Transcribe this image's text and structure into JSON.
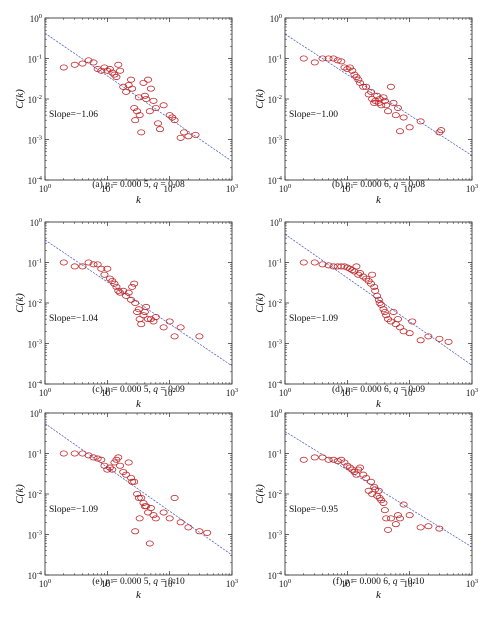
{
  "chart_data": [
    {
      "type": "scatter",
      "panel_id": "a",
      "caption": {
        "label": "(a) ",
        "p_var": "p",
        "p_val": " = 0.000 5, ",
        "q_var": "q",
        "q_val": " = 0.08"
      },
      "xlabel": "k",
      "ylabel": "C(k)",
      "x_scale": "log",
      "y_scale": "log",
      "xlim": [
        1,
        1000
      ],
      "ylim": [
        0.0001,
        1
      ],
      "x_ticks": [
        "10^0",
        "10^1",
        "10^2",
        "10^3"
      ],
      "y_ticks": [
        "10^0",
        "10^-1",
        "10^-2",
        "10^-3",
        "10^-4"
      ],
      "annotation": "Slope=−1.06",
      "fit_line": {
        "slope": -1.06,
        "points": [
          [
            1,
            0.42
          ],
          [
            1000,
            0.00029
          ]
        ]
      },
      "x": [
        2,
        3,
        4,
        5,
        6,
        7,
        8,
        9,
        10,
        11,
        12,
        13,
        14,
        15,
        16,
        18,
        20,
        22,
        24,
        25,
        27,
        28,
        30,
        32,
        33,
        35,
        38,
        40,
        42,
        45,
        48,
        50,
        55,
        60,
        65,
        70,
        80,
        100,
        110,
        120,
        150,
        170,
        200,
        260
      ],
      "y": [
        0.06,
        0.07,
        0.075,
        0.09,
        0.08,
        0.055,
        0.05,
        0.06,
        0.05,
        0.055,
        0.045,
        0.04,
        0.035,
        0.07,
        0.05,
        0.02,
        0.015,
        0.022,
        0.03,
        0.018,
        0.006,
        0.003,
        0.005,
        0.011,
        0.004,
        0.0015,
        0.025,
        0.012,
        0.01,
        0.03,
        0.005,
        0.018,
        0.009,
        0.006,
        0.0025,
        0.0018,
        0.007,
        0.004,
        0.0035,
        0.003,
        0.0011,
        0.0015,
        0.0012,
        0.0013
      ]
    },
    {
      "type": "scatter",
      "panel_id": "b",
      "caption": {
        "label": "(b) ",
        "p_var": "p",
        "p_val": " = 0.000 6, ",
        "q_var": "q",
        "q_val": " = 0.08"
      },
      "xlabel": "k",
      "ylabel": "C(k)",
      "x_scale": "log",
      "y_scale": "log",
      "xlim": [
        1,
        1000
      ],
      "ylim": [
        0.0001,
        1
      ],
      "x_ticks": [
        "10^0",
        "10^1",
        "10^2",
        "10^3"
      ],
      "y_ticks": [
        "10^0",
        "10^-1",
        "10^-2",
        "10^-3",
        "10^-4"
      ],
      "annotation": "Slope=−1.00",
      "fit_line": {
        "slope": -1.0,
        "points": [
          [
            1,
            0.4
          ],
          [
            1000,
            0.0004
          ]
        ]
      },
      "x": [
        2,
        3,
        4,
        5,
        6,
        7,
        8,
        9,
        10,
        11,
        12,
        13,
        14,
        15,
        16,
        18,
        20,
        22,
        24,
        25,
        27,
        28,
        30,
        32,
        33,
        35,
        38,
        40,
        42,
        45,
        50,
        55,
        60,
        65,
        70,
        80,
        100,
        150,
        300,
        320
      ],
      "y": [
        0.1,
        0.08,
        0.1,
        0.1,
        0.1,
        0.09,
        0.085,
        0.06,
        0.055,
        0.06,
        0.05,
        0.04,
        0.035,
        0.03,
        0.025,
        0.02,
        0.02,
        0.013,
        0.015,
        0.01,
        0.008,
        0.009,
        0.012,
        0.008,
        0.01,
        0.007,
        0.011,
        0.009,
        0.007,
        0.005,
        0.02,
        0.008,
        0.004,
        0.006,
        0.0016,
        0.0035,
        0.002,
        0.0028,
        0.0015,
        0.0017
      ]
    },
    {
      "type": "scatter",
      "panel_id": "c",
      "caption": {
        "label": "(c) ",
        "p_var": "p",
        "p_val": " = 0.000 5, ",
        "q_var": "q",
        "q_val": " = 0.09"
      },
      "xlabel": "k",
      "ylabel": "C(k)",
      "x_scale": "log",
      "y_scale": "log",
      "xlim": [
        1,
        1000
      ],
      "ylim": [
        0.0001,
        1
      ],
      "x_ticks": [
        "10^0",
        "10^1",
        "10^2",
        "10^3"
      ],
      "y_ticks": [
        "10^0",
        "10^-1",
        "10^-2",
        "10^-3",
        "10^-4"
      ],
      "annotation": "Slope=−1.04",
      "fit_line": {
        "slope": -1.04,
        "points": [
          [
            1,
            0.36
          ],
          [
            1000,
            0.00028
          ]
        ]
      },
      "x": [
        2,
        3,
        4,
        5,
        6,
        7,
        8,
        9,
        10,
        11,
        12,
        13,
        14,
        15,
        16,
        18,
        20,
        22,
        24,
        25,
        27,
        28,
        30,
        32,
        33,
        35,
        38,
        40,
        42,
        45,
        50,
        55,
        60,
        80,
        100,
        120,
        150,
        300
      ],
      "y": [
        0.1,
        0.08,
        0.08,
        0.1,
        0.09,
        0.09,
        0.07,
        0.05,
        0.07,
        0.04,
        0.035,
        0.03,
        0.025,
        0.02,
        0.018,
        0.02,
        0.015,
        0.018,
        0.012,
        0.025,
        0.03,
        0.01,
        0.006,
        0.007,
        0.004,
        0.003,
        0.005,
        0.006,
        0.008,
        0.004,
        0.004,
        0.0035,
        0.0045,
        0.0025,
        0.0035,
        0.0015,
        0.0025,
        0.0015
      ]
    },
    {
      "type": "scatter",
      "panel_id": "d",
      "caption": {
        "label": "(d) ",
        "p_var": "p",
        "p_val": " = 0.000 6, ",
        "q_var": "q",
        "q_val": " = 0.09"
      },
      "xlabel": "k",
      "ylabel": "C(k)",
      "x_scale": "log",
      "y_scale": "log",
      "xlim": [
        1,
        1000
      ],
      "ylim": [
        0.0001,
        1
      ],
      "x_ticks": [
        "10^0",
        "10^1",
        "10^2",
        "10^3"
      ],
      "y_ticks": [
        "10^0",
        "10^-1",
        "10^-2",
        "10^-3",
        "10^-4"
      ],
      "annotation": "Slope=−1.09",
      "fit_line": {
        "slope": -1.09,
        "points": [
          [
            1,
            0.5
          ],
          [
            1000,
            0.00029
          ]
        ]
      },
      "x": [
        2,
        3,
        4,
        5,
        6,
        7,
        8,
        9,
        10,
        11,
        12,
        13,
        14,
        15,
        16,
        18,
        20,
        22,
        24,
        25,
        27,
        28,
        30,
        32,
        33,
        35,
        38,
        40,
        42,
        45,
        50,
        55,
        60,
        65,
        70,
        80,
        100,
        110,
        150,
        200,
        300,
        420
      ],
      "y": [
        0.1,
        0.1,
        0.09,
        0.085,
        0.08,
        0.08,
        0.08,
        0.08,
        0.075,
        0.07,
        0.065,
        0.06,
        0.08,
        0.05,
        0.055,
        0.045,
        0.04,
        0.035,
        0.03,
        0.05,
        0.025,
        0.02,
        0.015,
        0.012,
        0.01,
        0.009,
        0.007,
        0.006,
        0.005,
        0.004,
        0.0035,
        0.006,
        0.003,
        0.004,
        0.0025,
        0.002,
        0.0018,
        0.0035,
        0.0012,
        0.0015,
        0.0013,
        0.0011
      ]
    },
    {
      "type": "scatter",
      "panel_id": "e",
      "caption": {
        "label": "(e) ",
        "p_var": "p",
        "p_val": " = 0.000 5, ",
        "q_var": "q",
        "q_val": " = 0.10"
      },
      "xlabel": "k",
      "ylabel": "C(k)",
      "x_scale": "log",
      "y_scale": "log",
      "xlim": [
        1,
        1000
      ],
      "ylim": [
        0.0001,
        1
      ],
      "x_ticks": [
        "10^0",
        "10^1",
        "10^2",
        "10^3"
      ],
      "y_ticks": [
        "10^0",
        "10^-1",
        "10^-2",
        "10^-3",
        "10^-4"
      ],
      "annotation": "Slope=−1.09",
      "fit_line": {
        "slope": -1.09,
        "points": [
          [
            1,
            0.55
          ],
          [
            1000,
            0.00031
          ]
        ]
      },
      "x": [
        2,
        3,
        4,
        5,
        6,
        7,
        8,
        9,
        10,
        11,
        12,
        13,
        14,
        15,
        16,
        18,
        20,
        22,
        24,
        25,
        27,
        28,
        30,
        32,
        33,
        35,
        38,
        40,
        42,
        45,
        48,
        50,
        55,
        60,
        80,
        100,
        120,
        150,
        200,
        300,
        400
      ],
      "y": [
        0.1,
        0.1,
        0.1,
        0.09,
        0.08,
        0.075,
        0.07,
        0.05,
        0.04,
        0.045,
        0.04,
        0.06,
        0.07,
        0.08,
        0.05,
        0.035,
        0.03,
        0.06,
        0.025,
        0.02,
        0.02,
        0.0012,
        0.01,
        0.008,
        0.0025,
        0.008,
        0.006,
        0.005,
        0.005,
        0.0035,
        0.0006,
        0.0045,
        0.003,
        0.0025,
        0.0035,
        0.0025,
        0.008,
        0.002,
        0.0015,
        0.0012,
        0.0011
      ]
    },
    {
      "type": "scatter",
      "panel_id": "f",
      "caption": {
        "label": "(f) ",
        "p_var": "p",
        "p_val": " = 0.000 6, ",
        "q_var": "q",
        "q_val": " = 0.10"
      },
      "xlabel": "k",
      "ylabel": "C(k)",
      "x_scale": "log",
      "y_scale": "log",
      "xlim": [
        1,
        1000
      ],
      "ylim": [
        0.0001,
        1
      ],
      "x_ticks": [
        "10^0",
        "10^1",
        "10^2",
        "10^3"
      ],
      "y_ticks": [
        "10^0",
        "10^-1",
        "10^-2",
        "10^-3",
        "10^-4"
      ],
      "annotation": "Slope=−0.95",
      "fit_line": {
        "slope": -0.95,
        "points": [
          [
            1,
            0.35
          ],
          [
            1000,
            0.00049
          ]
        ]
      },
      "x": [
        2,
        3,
        4,
        5,
        6,
        7,
        8,
        9,
        10,
        11,
        12,
        13,
        14,
        15,
        16,
        18,
        20,
        22,
        24,
        25,
        27,
        28,
        30,
        32,
        33,
        35,
        38,
        40,
        42,
        45,
        50,
        60,
        65,
        70,
        80,
        100,
        150,
        200,
        300
      ],
      "y": [
        0.07,
        0.08,
        0.08,
        0.07,
        0.07,
        0.065,
        0.07,
        0.06,
        0.05,
        0.045,
        0.04,
        0.035,
        0.03,
        0.04,
        0.045,
        0.03,
        0.025,
        0.012,
        0.02,
        0.01,
        0.015,
        0.013,
        0.009,
        0.012,
        0.008,
        0.007,
        0.006,
        0.004,
        0.0025,
        0.0013,
        0.0025,
        0.0018,
        0.003,
        0.0025,
        0.0055,
        0.003,
        0.0015,
        0.0016,
        0.0014
      ]
    }
  ]
}
